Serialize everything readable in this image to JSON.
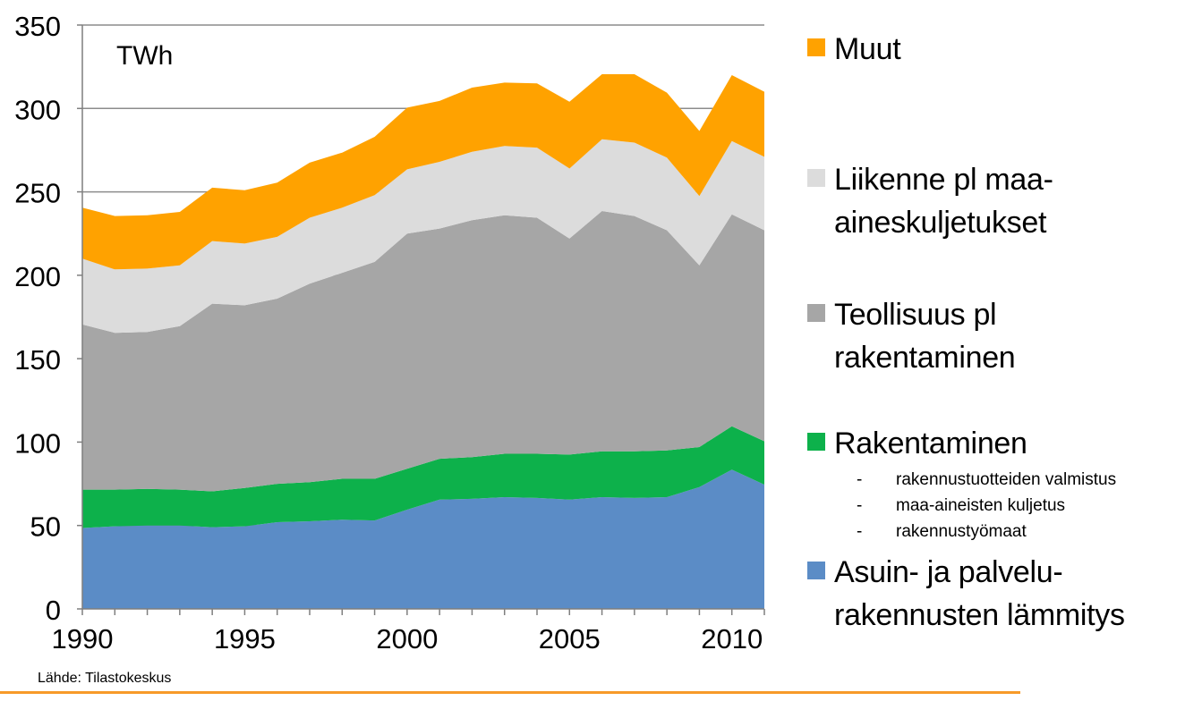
{
  "chart_data": {
    "type": "area",
    "stacked": true,
    "unit_label": "TWh",
    "x": [
      1990,
      1991,
      1992,
      1993,
      1994,
      1995,
      1996,
      1997,
      1998,
      1999,
      2000,
      2001,
      2002,
      2003,
      2004,
      2005,
      2006,
      2007,
      2008,
      2009,
      2010,
      2011
    ],
    "xticks": [
      "1990",
      "1995",
      "2000",
      "2005",
      "2010"
    ],
    "xtick_values": [
      1990,
      1995,
      2000,
      2005,
      2010
    ],
    "yticks": [
      "0",
      "50",
      "100",
      "150",
      "200",
      "250",
      "300",
      "350"
    ],
    "ylim": [
      0,
      350
    ],
    "grid": true,
    "series": [
      {
        "name": "Asuin- ja palvelu-\nrakennusten lämmitys",
        "color": "#5b8cc6",
        "values": [
          48.5,
          49.5,
          50,
          50,
          49,
          49.5,
          52,
          52.5,
          53.5,
          53,
          59.5,
          65.5,
          66,
          67,
          66.5,
          65.5,
          67,
          66.5,
          67,
          73,
          83.5,
          74.5
        ]
      },
      {
        "name": "Rakentaminen",
        "color": "#0db14b",
        "values": [
          23,
          22,
          22,
          21.5,
          21.5,
          23,
          23,
          23.5,
          24.5,
          25,
          24.5,
          24.5,
          25,
          26,
          26.5,
          27,
          27.5,
          28,
          28,
          24,
          26,
          26
        ]
      },
      {
        "name": "Teollisuus pl\nrakentaminen",
        "color": "#a6a6a6",
        "values": [
          99,
          94,
          94,
          98,
          112.5,
          109.5,
          111,
          119,
          123.5,
          130,
          141,
          138,
          142,
          143,
          141.5,
          129.5,
          144,
          141,
          132,
          109,
          127,
          126.5
        ]
      },
      {
        "name": "Liikenne pl maa-\naineskuljetukset",
        "color": "#dcdcdc",
        "values": [
          39.5,
          38,
          38,
          36.5,
          37.5,
          37,
          37,
          39.5,
          39,
          40,
          38.5,
          40,
          41,
          41.5,
          42,
          42,
          43,
          44,
          43.5,
          41.5,
          44,
          44
        ]
      },
      {
        "name": "Muut",
        "color": "#ffa200",
        "values": [
          30.5,
          32,
          32,
          32,
          32,
          32,
          32.5,
          33,
          33,
          35,
          37,
          36.5,
          38.5,
          38,
          38.5,
          40,
          39,
          41,
          39,
          39,
          39.5,
          39
        ]
      }
    ]
  },
  "legend": {
    "items": [
      {
        "label": "Muut",
        "color": "#ffa200"
      },
      {
        "label": "Liikenne pl maa-\naineskuljetukset",
        "color": "#dcdcdc"
      },
      {
        "label": "Teollisuus pl\nrakentaminen",
        "color": "#a6a6a6"
      },
      {
        "label": "Rakentaminen",
        "color": "#0db14b"
      },
      {
        "label": "Asuin- ja palvelu-\nrakennusten lämmitys",
        "color": "#5b8cc6"
      }
    ],
    "subitems": [
      {
        "dash": "-",
        "text": "rakennustuotteiden valmistus"
      },
      {
        "dash": "-",
        "text": "maa-aineisten kuljetus"
      },
      {
        "dash": "-",
        "text": "rakennustyömaat"
      }
    ]
  },
  "source": "Lähde: Tilastokeskus",
  "accent_color": "#f79a29"
}
